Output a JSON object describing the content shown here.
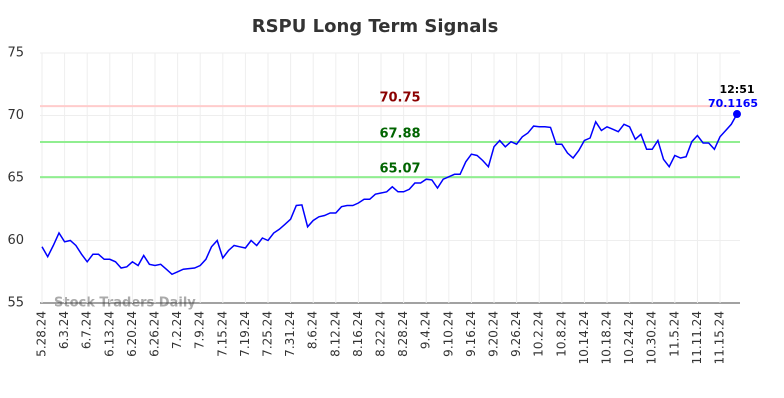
{
  "chart_data": {
    "type": "line",
    "title": "RSPU Long Term Signals",
    "watermark": "Stock Traders Daily",
    "categories": [
      "5.28.24",
      null,
      null,
      null,
      "6.3.24",
      null,
      null,
      null,
      "6.7.24",
      null,
      null,
      null,
      "6.13.24",
      null,
      null,
      null,
      "6.20.24",
      null,
      null,
      null,
      "6.26.24",
      null,
      null,
      null,
      "7.2.24",
      null,
      null,
      null,
      "7.9.24",
      null,
      null,
      null,
      "7.15.24",
      null,
      null,
      null,
      "7.19.24",
      null,
      null,
      null,
      "7.25.24",
      null,
      null,
      null,
      "7.31.24",
      null,
      null,
      null,
      "8.6.24",
      null,
      null,
      null,
      "8.12.24",
      null,
      null,
      null,
      "8.16.24",
      null,
      null,
      null,
      "8.22.24",
      null,
      null,
      null,
      "8.28.24",
      null,
      null,
      null,
      "9.4.24",
      null,
      null,
      null,
      "9.10.24",
      null,
      null,
      null,
      "9.16.24",
      null,
      null,
      null,
      "9.20.24",
      null,
      null,
      null,
      "9.26.24",
      null,
      null,
      null,
      "10.2.24",
      null,
      null,
      null,
      "10.8.24",
      null,
      null,
      null,
      "10.14.24",
      null,
      null,
      null,
      "10.18.24",
      null,
      null,
      null,
      "10.24.24",
      null,
      null,
      null,
      "10.30.24",
      null,
      null,
      null,
      "11.5.24",
      null,
      null,
      null,
      "11.11.24",
      null,
      null,
      null,
      "11.15.24",
      null,
      null,
      null
    ],
    "values": [
      59.5,
      58.7,
      59.6,
      60.6,
      59.9,
      60.0,
      59.6,
      58.9,
      58.3,
      58.9,
      58.9,
      58.5,
      58.5,
      58.3,
      57.8,
      57.9,
      58.3,
      58.0,
      58.8,
      58.1,
      58.0,
      58.1,
      57.7,
      57.3,
      57.5,
      57.7,
      57.75,
      57.8,
      58.0,
      58.5,
      59.5,
      60.0,
      58.6,
      59.2,
      59.6,
      59.5,
      59.4,
      60.0,
      59.6,
      60.2,
      60.0,
      60.6,
      60.9,
      61.3,
      61.7,
      62.8,
      62.85,
      61.1,
      61.6,
      61.9,
      62.0,
      62.2,
      62.2,
      62.7,
      62.8,
      62.8,
      63.0,
      63.3,
      63.3,
      63.7,
      63.8,
      63.9,
      64.3,
      63.9,
      63.9,
      64.1,
      64.6,
      64.6,
      64.9,
      64.85,
      64.2,
      64.9,
      65.1,
      65.3,
      65.3,
      66.3,
      66.9,
      66.8,
      66.4,
      65.9,
      67.5,
      68.0,
      67.5,
      67.9,
      67.7,
      68.3,
      68.6,
      69.15,
      69.1,
      69.1,
      69.05,
      67.7,
      67.7,
      67.0,
      66.6,
      67.2,
      68.0,
      68.2,
      69.5,
      68.8,
      69.1,
      68.9,
      68.7,
      69.3,
      69.1,
      68.1,
      68.5,
      67.3,
      67.3,
      68.0,
      66.5,
      65.9,
      66.8,
      66.6,
      66.7,
      67.9,
      68.4,
      67.8,
      67.8,
      67.3,
      68.3,
      68.8,
      69.3,
      70.1165
    ],
    "color": "#0000ff",
    "last_time": "12:51",
    "levels": [
      {
        "value": 70.75,
        "color": "#ffcccc",
        "label_color": "#8b0000"
      },
      {
        "value": 67.88,
        "color": "#90ee90",
        "label_color": "#006400"
      },
      {
        "value": 65.07,
        "color": "#90ee90",
        "label_color": "#006400"
      }
    ],
    "ylim": [
      55,
      75
    ],
    "yticks": [
      55,
      60,
      65,
      70,
      75
    ],
    "grid": true
  }
}
